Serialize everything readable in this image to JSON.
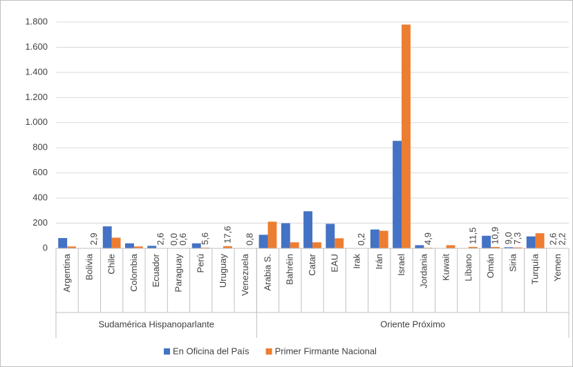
{
  "chart_data": {
    "type": "bar",
    "categories": [
      "Argentina",
      "Bolivia",
      "Chile",
      "Colombia",
      "Ecuador",
      "Paraguay",
      "Perú",
      "Uruguay",
      "Venezuela",
      "Arabia S.",
      "Bahréin",
      "Catar",
      "EAU",
      "Irak",
      "Irán",
      "Israel",
      "Jordania",
      "Kuwait",
      "Líbano",
      "Omán",
      "Siria",
      "Turquía",
      "Yemen"
    ],
    "groups": [
      {
        "label": "Sudamérica Hispanoparlante",
        "count": 9
      },
      {
        "label": "Oriente Próximo",
        "count": 14
      }
    ],
    "series": [
      {
        "name": "En Oficina del País",
        "color": "#4472c4",
        "values": [
          82,
          0,
          175,
          40,
          20,
          0.0,
          40,
          0,
          0,
          108,
          200,
          295,
          195,
          0,
          150,
          855,
          25,
          0,
          0,
          100,
          9.0,
          95,
          2.6
        ],
        "value_labels": [
          null,
          null,
          null,
          null,
          null,
          "0,0",
          null,
          null,
          null,
          null,
          null,
          null,
          null,
          null,
          null,
          null,
          null,
          null,
          null,
          null,
          "9,0",
          null,
          "2,6"
        ]
      },
      {
        "name": "Primer Firmante Nacional",
        "color": "#ed7d31",
        "values": [
          15,
          2.9,
          85,
          15,
          2.6,
          0.6,
          5.6,
          17.6,
          0.8,
          212,
          48,
          48,
          80,
          0.2,
          140,
          1780,
          4.9,
          25,
          11.5,
          10.9,
          7.3,
          120,
          2.2
        ],
        "value_labels": [
          null,
          "2,9",
          null,
          null,
          "2,6",
          "0,6",
          "5,6",
          "17,6",
          "0,8",
          null,
          null,
          null,
          null,
          "0,2",
          null,
          null,
          "4,9",
          null,
          "11,5",
          "10,9",
          "7,3",
          null,
          "2,2"
        ]
      }
    ],
    "ylim": [
      0,
      1800
    ],
    "yticks": [
      0,
      200,
      400,
      600,
      800,
      {
        "value": 1000,
        "label": "1.000"
      },
      {
        "value": 1200,
        "label": "1.200"
      },
      {
        "value": 1400,
        "label": "1.400"
      },
      {
        "value": 1600,
        "label": "1.600"
      },
      {
        "value": 1800,
        "label": "1.800"
      }
    ],
    "grid": true,
    "legend": "bottom"
  }
}
